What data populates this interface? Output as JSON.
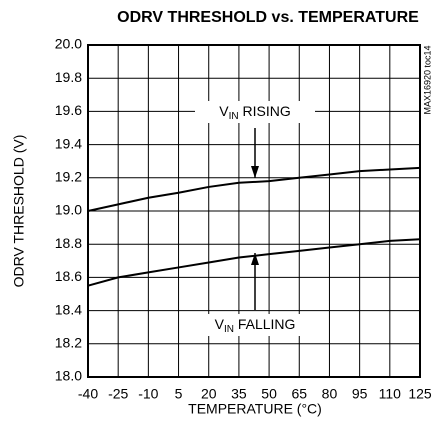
{
  "chart_data": {
    "type": "line",
    "title": "ODRV THRESHOLD vs. TEMPERATURE",
    "xlabel": "TEMPERATURE (°C)",
    "ylabel": "ODRV THRESHOLD (V)",
    "note": "MAX16920 toc14",
    "x": [
      -40,
      -25,
      -10,
      5,
      20,
      35,
      50,
      65,
      80,
      95,
      110,
      125
    ],
    "series": [
      {
        "name": "RISING",
        "color": "#000000",
        "values": [
          19.0,
          19.04,
          19.08,
          19.11,
          19.145,
          19.17,
          19.18,
          19.2,
          19.22,
          19.24,
          19.25,
          19.26
        ]
      },
      {
        "name": "FALLING",
        "color": "#000000",
        "values": [
          18.55,
          18.6,
          18.63,
          18.66,
          18.69,
          18.72,
          18.74,
          18.76,
          18.78,
          18.8,
          18.82,
          18.83
        ]
      }
    ],
    "annotations": [
      {
        "text": "V",
        "subscript": "IN",
        "suffix": " RISING"
      },
      {
        "text": "V",
        "subscript": "IN",
        "suffix": " FALLING"
      }
    ],
    "xlim": [
      -40,
      125
    ],
    "xticks": [
      -40,
      -25,
      -10,
      5,
      20,
      35,
      50,
      65,
      80,
      95,
      110,
      125
    ],
    "ylim": [
      18,
      20
    ],
    "yticks": [
      {
        "value": 18,
        "label": "18.0"
      },
      18.2,
      18.4,
      18.6,
      18.8,
      {
        "value": 19,
        "label": "19.0"
      },
      19.2,
      19.4,
      19.6,
      19.8,
      {
        "value": 20,
        "label": "20.0"
      }
    ],
    "grid": true
  }
}
